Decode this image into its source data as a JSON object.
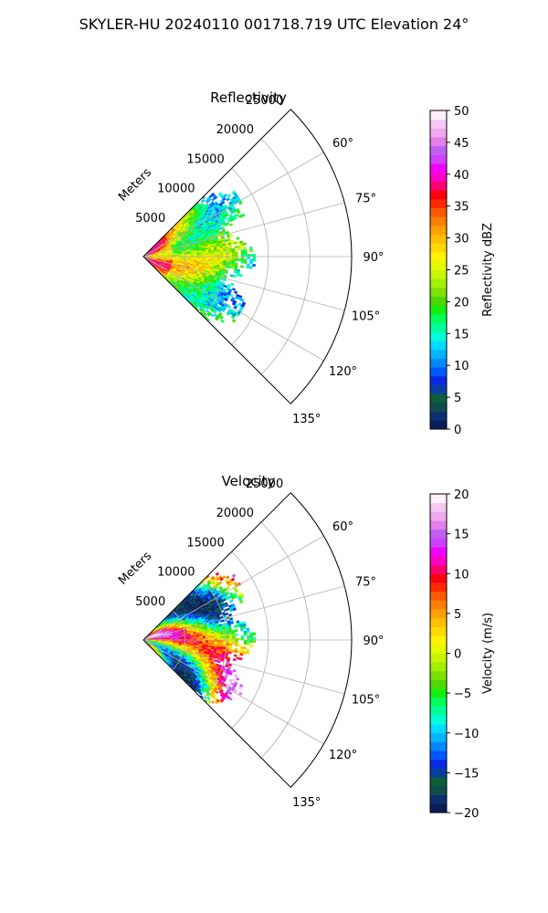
{
  "figure": {
    "title": "SKYLER-HU  20240110  001718.719 UTC Elevation 24°"
  },
  "colors": {
    "grid": "#b0b0b0",
    "frame": "#000000",
    "background": "#ffffff"
  },
  "chart_data": [
    {
      "type": "heatmap",
      "projection": "polar-sector",
      "title": "Reflectivity",
      "radial_label": "Meters",
      "r_ticks": [
        5000,
        10000,
        15000,
        20000,
        25000
      ],
      "r_tick_labels": [
        "5000",
        "10000",
        "15000",
        "20000",
        "25000"
      ],
      "rlim": [
        0,
        25000
      ],
      "theta_ticks_deg": [
        60,
        75,
        90,
        105,
        120,
        135
      ],
      "theta_tick_labels": [
        "60°",
        "75°",
        "90°",
        "105°",
        "120°",
        "135°"
      ],
      "theta_range_deg": [
        45,
        135
      ],
      "grid": true,
      "data_extent_m": {
        "min_range": 0,
        "max_range": 13500,
        "min_azimuth": 45,
        "max_azimuth": 135
      },
      "dominant_values_dBZ": [
        25,
        30,
        20,
        35
      ],
      "colorbar": {
        "label": "Reflectivity dBZ",
        "vmin": 0,
        "vmax": 50,
        "ticks": [
          0,
          5,
          10,
          15,
          20,
          25,
          30,
          35,
          40,
          45,
          50
        ],
        "tick_labels": [
          "0",
          "5",
          "10",
          "15",
          "20",
          "25",
          "30",
          "35",
          "40",
          "45",
          "50"
        ],
        "colors": [
          "#0a1e5a",
          "#0c2f6f",
          "#124b4b",
          "#0b5f3a",
          "#0a3fa0",
          "#0b2ae0",
          "#0058ff",
          "#0088ff",
          "#00b4ff",
          "#00dcff",
          "#00ffd8",
          "#00ff9a",
          "#00ff5a",
          "#14ee10",
          "#4fd800",
          "#7ee000",
          "#a4ee00",
          "#c8f500",
          "#e4fa00",
          "#fff300",
          "#ffd900",
          "#ffbf00",
          "#ffa000",
          "#ff8000",
          "#ff5a00",
          "#ff2a00",
          "#ff0010",
          "#ff0070",
          "#ff00c8",
          "#f000ff",
          "#d040ff",
          "#c060f0",
          "#e080e8",
          "#f0a8ee",
          "#f8c8f2",
          "#fff0fb"
        ]
      }
    },
    {
      "type": "heatmap",
      "projection": "polar-sector",
      "title": "Velocity",
      "radial_label": "Meters",
      "r_ticks": [
        5000,
        10000,
        15000,
        20000,
        25000
      ],
      "r_tick_labels": [
        "5000",
        "10000",
        "15000",
        "20000",
        "25000"
      ],
      "rlim": [
        0,
        25000
      ],
      "theta_ticks_deg": [
        60,
        75,
        90,
        105,
        120,
        135
      ],
      "theta_tick_labels": [
        "60°",
        "75°",
        "90°",
        "105°",
        "120°",
        "135°"
      ],
      "theta_range_deg": [
        45,
        135
      ],
      "grid": true,
      "data_extent_m": {
        "min_range": 0,
        "max_range": 13500,
        "min_azimuth": 45,
        "max_azimuth": 135
      },
      "colorbar": {
        "label": "Velocity (m/s)",
        "vmin": -20,
        "vmax": 20,
        "ticks": [
          -20,
          -15,
          -10,
          -5,
          0,
          5,
          10,
          15,
          20
        ],
        "tick_labels": [
          "−20",
          "−15",
          "−10",
          "−5",
          "0",
          "5",
          "10",
          "15",
          "20"
        ],
        "colors": [
          "#0a1e5a",
          "#0c2f6f",
          "#124b4b",
          "#0b5f3a",
          "#0a3fa0",
          "#0b2ae0",
          "#0058ff",
          "#0088ff",
          "#00b4ff",
          "#00dcff",
          "#00ffd8",
          "#00ff9a",
          "#00ff5a",
          "#14ee10",
          "#4fd800",
          "#7ee000",
          "#a4ee00",
          "#c8f500",
          "#e4fa00",
          "#fff300",
          "#ffd900",
          "#ffbf00",
          "#ffa000",
          "#ff8000",
          "#ff5a00",
          "#ff2a00",
          "#ff0010",
          "#ff0070",
          "#ff00c8",
          "#f000ff",
          "#d040ff",
          "#c060f0",
          "#e080e8",
          "#f0a8ee",
          "#f8c8f2",
          "#fff0fb"
        ]
      }
    }
  ]
}
